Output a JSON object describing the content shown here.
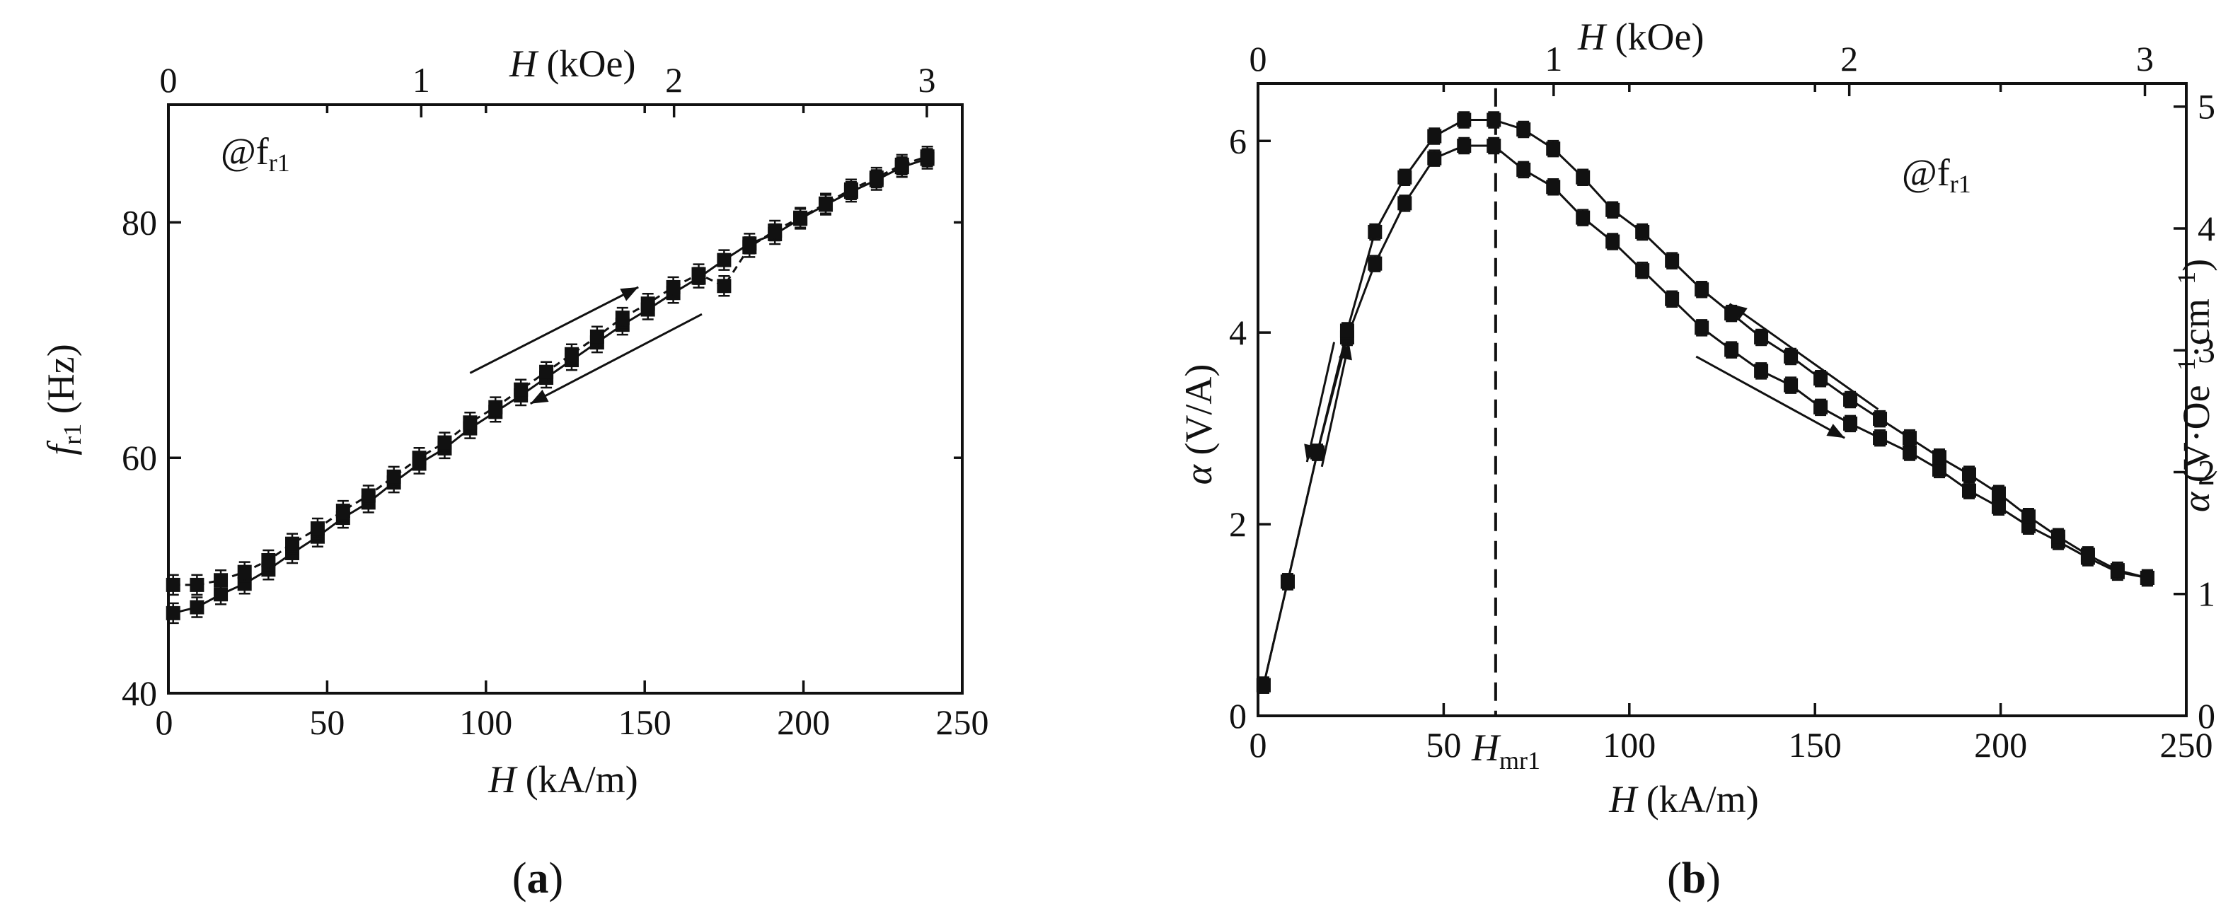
{
  "chart_data": [
    {
      "type": "scatter",
      "panel": "a",
      "caption_letter": "a",
      "annotation": "@f",
      "annotation_sub": "r1",
      "xlabel_italic": "H",
      "xlabel_unit": " (kA/m)",
      "top_xlabel_italic": "H",
      "top_xlabel_unit": " (kOe)",
      "ylabel_italic": "f",
      "ylabel_sub": "r1",
      "ylabel_unit": " (Hz)",
      "xlim": [
        0,
        250
      ],
      "ylim": [
        40,
        90
      ],
      "xticks": [
        0,
        50,
        100,
        150,
        200,
        250
      ],
      "yticks": [
        40,
        60,
        80
      ],
      "top_xlim_kOe": [
        0,
        3.14
      ],
      "top_xticks": [
        0,
        1,
        2,
        3
      ],
      "x": [
        1.5,
        9,
        16.5,
        24,
        31.5,
        39,
        47,
        55,
        63,
        71,
        79,
        87,
        95,
        103,
        111,
        119,
        127,
        135,
        143,
        151,
        159,
        167,
        175,
        183,
        191,
        199,
        207,
        215,
        223,
        231,
        239
      ],
      "series": [
        {
          "name": "increasing H",
          "arrow": "up",
          "values": [
            46.8,
            47.3,
            48.4,
            49.3,
            50.5,
            51.9,
            53.3,
            54.9,
            56.2,
            57.9,
            59.5,
            60.8,
            62.5,
            63.9,
            65.3,
            66.8,
            68.3,
            69.8,
            71.3,
            72.6,
            74.0,
            75.3,
            76.8,
            78.2,
            79.0,
            80.3,
            81.5,
            82.6,
            83.6,
            84.7,
            85.4
          ]
        },
        {
          "name": "decreasing H",
          "arrow": "down",
          "values": [
            49.2,
            49.2,
            49.6,
            50.3,
            51.3,
            52.7,
            54.0,
            55.5,
            56.8,
            58.4,
            60.0,
            61.3,
            63.0,
            64.3,
            65.8,
            67.3,
            68.8,
            70.3,
            71.9,
            73.1,
            74.5,
            75.6,
            74.6,
            77.9,
            79.3,
            80.4,
            81.6,
            82.8,
            83.8,
            84.9,
            85.6
          ]
        }
      ]
    },
    {
      "type": "scatter",
      "panel": "b",
      "caption_letter": "b",
      "annotation": "@f",
      "annotation_sub": "r1",
      "xlabel_italic": "H",
      "xlabel_unit": " (kA/m)",
      "top_xlabel_italic": "H",
      "top_xlabel_unit": " (kOe)",
      "ylabel_italic": "α",
      "ylabel_unit": " (V/A)",
      "y2label_italic": "α",
      "y2label_unit": " (V·Oe",
      "y2label_exp1": "−1",
      "y2label_mid": "·cm",
      "y2label_exp2": "−1",
      "y2label_close": ")",
      "xlim": [
        0,
        250
      ],
      "ylim": [
        0,
        6.6
      ],
      "xticks": [
        0,
        50,
        100,
        150,
        200,
        250
      ],
      "yticks": [
        0,
        2,
        4,
        6
      ],
      "y2lim": [
        0,
        5.19
      ],
      "y2ticks": [
        0,
        1,
        2,
        3,
        4,
        5
      ],
      "top_xlim_kOe": [
        0,
        3.14
      ],
      "top_xticks": [
        0,
        1,
        2,
        3
      ],
      "hmr_label_italic": "H",
      "hmr_label_sub": "mr1",
      "hmr_x": 64,
      "x": [
        1.5,
        8,
        16,
        24,
        31.5,
        39.5,
        47.5,
        55.5,
        63.5,
        71.5,
        79.5,
        87.5,
        95.5,
        103.5,
        111.5,
        119.5,
        127.5,
        135.5,
        143.5,
        151.5,
        159.5,
        167.5,
        175.5,
        183.5,
        191.5,
        199.5,
        207.5,
        215.5,
        223.5,
        231.5,
        239.5
      ],
      "series": [
        {
          "name": "increasing H",
          "values": [
            0.32,
            1.4,
            2.75,
            3.95,
            4.72,
            5.35,
            5.82,
            5.95,
            5.95,
            5.7,
            5.52,
            5.2,
            4.95,
            4.65,
            4.35,
            4.05,
            3.82,
            3.6,
            3.45,
            3.22,
            3.05,
            2.9,
            2.75,
            2.57,
            2.35,
            2.18,
            1.98,
            1.82,
            1.65,
            1.5,
            1.44
          ]
        },
        {
          "name": "decreasing H",
          "values": [
            0.32,
            1.4,
            2.75,
            4.02,
            5.05,
            5.62,
            6.05,
            6.22,
            6.22,
            6.12,
            5.92,
            5.62,
            5.28,
            5.05,
            4.75,
            4.45,
            4.2,
            3.95,
            3.75,
            3.52,
            3.3,
            3.1,
            2.9,
            2.7,
            2.52,
            2.32,
            2.08,
            1.87,
            1.68,
            1.52,
            1.44
          ]
        }
      ]
    }
  ]
}
